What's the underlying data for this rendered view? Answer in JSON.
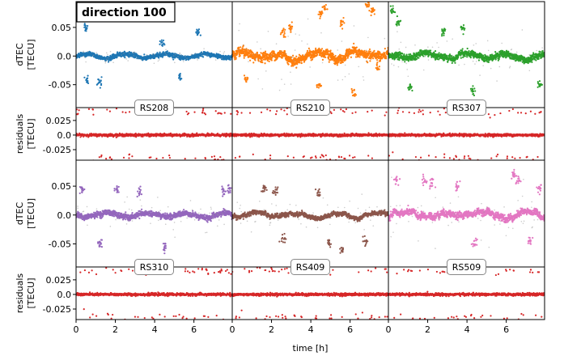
{
  "chart_data": {
    "type": "scatter",
    "title": "direction 100",
    "xlabel": "time [h]",
    "x_ticks": [
      "0",
      "2",
      "4",
      "6"
    ],
    "xlim": [
      0,
      7.95
    ],
    "grid": false,
    "dtec_panel": {
      "ylabel": [
        "dTEC",
        "[TECU]"
      ],
      "y_ticks": [
        "0.05",
        "0.0",
        "-0.05"
      ],
      "ylim": [
        -0.09,
        0.095
      ]
    },
    "residuals_panel": {
      "ylabel": [
        "residuals",
        "[TECU]"
      ],
      "y_ticks": [
        "0.025",
        "0.0",
        "-0.025"
      ],
      "ylim": [
        -0.043,
        0.047
      ]
    },
    "stations": [
      {
        "name": "RS208",
        "color": "#1f77b4",
        "noise": 0.004,
        "variability": 0.2,
        "outliers": [
          [
            0.55,
            -0.043
          ],
          [
            0.5,
            0.05
          ],
          [
            4.4,
            0.02
          ],
          [
            6.2,
            0.04
          ],
          [
            5.3,
            -0.035
          ],
          [
            1.2,
            -0.045
          ]
        ]
      },
      {
        "name": "RS210",
        "color": "#ff7f0e",
        "noise": 0.008,
        "variability": 1.0,
        "outliers": [
          [
            4.5,
            0.07
          ],
          [
            4.7,
            0.085
          ],
          [
            6.9,
            0.09
          ],
          [
            7.1,
            0.08
          ],
          [
            6.2,
            -0.065
          ],
          [
            4.4,
            -0.05
          ],
          [
            7.4,
            -0.02
          ],
          [
            2.6,
            0.04
          ],
          [
            3.0,
            0.05
          ],
          [
            0.7,
            -0.04
          ],
          [
            5.6,
            0.06
          ]
        ]
      },
      {
        "name": "RS307",
        "color": "#2ca02c",
        "noise": 0.006,
        "variability": 0.6,
        "outliers": [
          [
            0.2,
            0.08
          ],
          [
            0.5,
            0.06
          ],
          [
            1.1,
            -0.055
          ],
          [
            3.8,
            0.05
          ],
          [
            4.3,
            -0.06
          ],
          [
            7.7,
            -0.05
          ],
          [
            2.8,
            0.04
          ]
        ]
      },
      {
        "name": "RS310",
        "color": "#9467bd",
        "noise": 0.005,
        "variability": 0.5,
        "outliers": [
          [
            0.3,
            0.045
          ],
          [
            1.2,
            -0.05
          ],
          [
            3.2,
            0.04
          ],
          [
            4.5,
            -0.055
          ],
          [
            7.5,
            0.04
          ],
          [
            7.8,
            0.045
          ],
          [
            2.1,
            0.045
          ]
        ]
      },
      {
        "name": "RS409",
        "color": "#8c564b",
        "noise": 0.004,
        "variability": 0.5,
        "outliers": [
          [
            1.6,
            0.045
          ],
          [
            2.2,
            0.04
          ],
          [
            4.4,
            0.038
          ],
          [
            4.9,
            -0.05
          ],
          [
            5.6,
            -0.06
          ],
          [
            6.8,
            -0.045
          ],
          [
            2.6,
            -0.04
          ]
        ]
      },
      {
        "name": "RS509",
        "color": "#e377c2",
        "noise": 0.006,
        "variability": 0.8,
        "outliers": [
          [
            0.4,
            0.06
          ],
          [
            1.8,
            0.06
          ],
          [
            2.2,
            0.055
          ],
          [
            3.5,
            0.05
          ],
          [
            4.4,
            -0.05
          ],
          [
            6.4,
            0.07
          ],
          [
            6.6,
            0.06
          ],
          [
            7.2,
            -0.045
          ],
          [
            7.7,
            0.045
          ]
        ]
      }
    ]
  }
}
